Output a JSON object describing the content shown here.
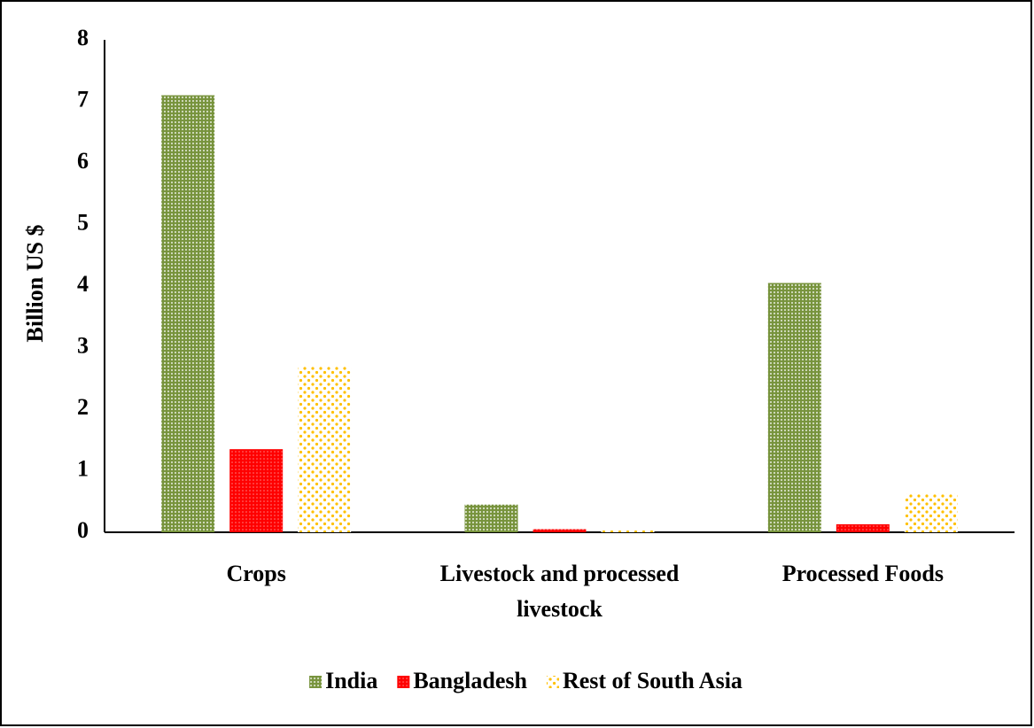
{
  "chart_data": {
    "type": "bar",
    "y_label": "Billion US $",
    "categories": [
      "Crops",
      "Livestock and processed livestock",
      "Processed Foods"
    ],
    "series": [
      {
        "name": "India",
        "color": "#77933c",
        "values": [
          7.1,
          0.45,
          4.05
        ]
      },
      {
        "name": "Bangladesh",
        "color": "#ff0000",
        "values": [
          1.35,
          0.05,
          0.13
        ]
      },
      {
        "name": "Rest of South Asia",
        "color": "#ffc000",
        "values": [
          2.7,
          0.03,
          0.63
        ]
      }
    ],
    "ylim": [
      0,
      8
    ],
    "yticks": [
      0,
      1,
      2,
      3,
      4,
      5,
      6,
      7,
      8
    ],
    "grid": false,
    "legend": "bottom"
  }
}
